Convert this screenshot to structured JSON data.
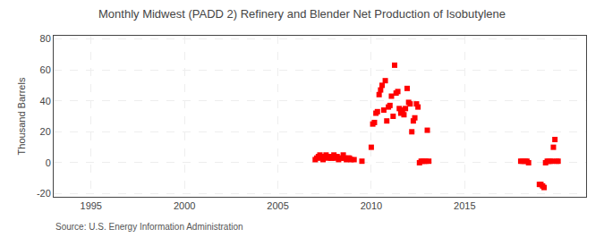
{
  "chart_data": {
    "type": "scatter",
    "title": "Monthly Midwest (PADD 2) Refinery and Blender Net Production of Isobutylene",
    "ylabel": "Thousand Barrels",
    "source": "Source: U.S. Energy Information Administration",
    "color": "#ff0000",
    "marker": "square",
    "grid": true,
    "xlim": [
      1993.0,
      2021.5
    ],
    "ylim": [
      -22,
      82
    ],
    "xticks": [
      1995,
      2000,
      2005,
      2010,
      2015
    ],
    "yticks": [
      -20,
      0,
      20,
      40,
      60,
      80
    ],
    "x": [
      2007.0,
      2007.08,
      2007.17,
      2007.25,
      2007.33,
      2007.42,
      2007.5,
      2007.58,
      2007.67,
      2007.75,
      2007.83,
      2007.92,
      2008.0,
      2008.08,
      2008.17,
      2008.25,
      2008.33,
      2008.42,
      2008.5,
      2008.58,
      2008.67,
      2008.75,
      2008.83,
      2008.92,
      2009.08,
      2009.5,
      2010.0,
      2010.08,
      2010.17,
      2010.25,
      2010.33,
      2010.42,
      2010.5,
      2010.58,
      2010.67,
      2010.75,
      2010.83,
      2010.92,
      2011.0,
      2011.08,
      2011.17,
      2011.25,
      2011.33,
      2011.42,
      2011.5,
      2011.58,
      2011.67,
      2011.75,
      2011.83,
      2011.92,
      2012.0,
      2012.08,
      2012.17,
      2012.25,
      2012.33,
      2012.42,
      2012.5,
      2012.58,
      2012.67,
      2012.75,
      2012.83,
      2012.92,
      2013.0,
      2013.08,
      2018.0,
      2018.08,
      2018.17,
      2018.25,
      2018.33,
      2018.42,
      2019.0,
      2019.08,
      2019.17,
      2019.25,
      2019.33,
      2019.42,
      2019.5,
      2019.58,
      2019.67,
      2019.75,
      2019.83,
      2019.92,
      2020.0
    ],
    "values": [
      2,
      3,
      4,
      5,
      3,
      2,
      4,
      5,
      3,
      4,
      3,
      3,
      5,
      3,
      4,
      2,
      3,
      3,
      5,
      3,
      2,
      3,
      3,
      2,
      2,
      1,
      10,
      25,
      26,
      32,
      33,
      44,
      47,
      50,
      34,
      53,
      27,
      36,
      37,
      43,
      30,
      63,
      45,
      46,
      35,
      32,
      34,
      31,
      35,
      48,
      39,
      38,
      20,
      27,
      29,
      38,
      36,
      0,
      1,
      1,
      1,
      1,
      21,
      1,
      1,
      1,
      1,
      1,
      1,
      0,
      -14,
      -14,
      -15,
      -16,
      0,
      1,
      1,
      1,
      1,
      10,
      15,
      1,
      1
    ]
  }
}
